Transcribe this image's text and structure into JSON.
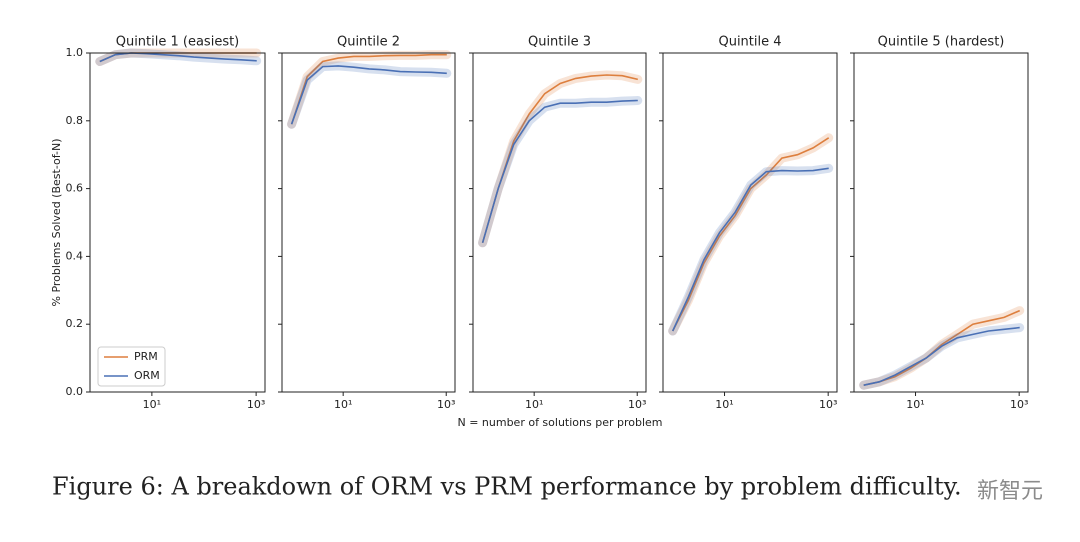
{
  "chart_data": [
    {
      "type": "line",
      "title": "Quintile 1 (easiest)",
      "ylabel": "% Problems Solved (Best-of-N)",
      "log_x": true,
      "x": [
        1,
        2,
        4,
        8,
        16,
        32,
        64,
        128,
        256,
        512,
        1024
      ],
      "xlim": [
        0.65,
        1480
      ],
      "xticks": [
        {
          "value": 10,
          "label": "10¹"
        },
        {
          "value": 1000,
          "label": "10³"
        }
      ],
      "ylim": [
        0,
        1
      ],
      "yticks": [
        {
          "value": 0,
          "label": "0.0"
        },
        0.2,
        0.4,
        0.6,
        0.8,
        {
          "value": 1,
          "label": "1.0"
        }
      ],
      "legend": "lower left",
      "series": [
        {
          "name": "PRM",
          "color": "#dd7f3e",
          "values": [
            0.975,
            0.995,
            1.0,
            1.0,
            1.0,
            1.0,
            1.0,
            1.0,
            1.0,
            1.0,
            1.0
          ]
        },
        {
          "name": "ORM",
          "color": "#4a70b5",
          "values": [
            0.975,
            0.995,
            1.0,
            0.998,
            0.995,
            0.992,
            0.988,
            0.985,
            0.982,
            0.98,
            0.977
          ]
        }
      ]
    },
    {
      "type": "line",
      "title": "Quintile 2",
      "log_x": true,
      "x": [
        1,
        2,
        4,
        8,
        16,
        32,
        64,
        128,
        256,
        512,
        1024
      ],
      "xlim": [
        0.65,
        1480
      ],
      "xticks": [
        {
          "value": 10,
          "label": "10¹"
        },
        {
          "value": 1000,
          "label": "10³"
        }
      ],
      "ylim": [
        0,
        1
      ],
      "yticks": [
        0,
        0.2,
        0.4,
        0.6,
        0.8,
        1
      ],
      "series": [
        {
          "color": "#dd7f3e",
          "values": [
            0.79,
            0.93,
            0.975,
            0.985,
            0.99,
            0.99,
            0.992,
            0.993,
            0.993,
            0.995,
            0.995
          ]
        },
        {
          "color": "#4a70b5",
          "values": [
            0.79,
            0.92,
            0.96,
            0.962,
            0.958,
            0.953,
            0.95,
            0.945,
            0.944,
            0.943,
            0.94
          ]
        }
      ]
    },
    {
      "type": "line",
      "title": "Quintile 3",
      "log_x": true,
      "x": [
        1,
        2,
        4,
        8,
        16,
        32,
        64,
        128,
        256,
        512,
        1024
      ],
      "xlim": [
        0.65,
        1480
      ],
      "xticks": [
        {
          "value": 10,
          "label": "10¹"
        },
        {
          "value": 1000,
          "label": "10³"
        }
      ],
      "ylim": [
        0,
        1
      ],
      "yticks": [
        0,
        0.2,
        0.4,
        0.6,
        0.8,
        1
      ],
      "series": [
        {
          "color": "#dd7f3e",
          "values": [
            0.44,
            0.6,
            0.74,
            0.82,
            0.88,
            0.91,
            0.925,
            0.932,
            0.935,
            0.933,
            0.922
          ]
        },
        {
          "color": "#4a70b5",
          "values": [
            0.44,
            0.6,
            0.73,
            0.8,
            0.84,
            0.852,
            0.852,
            0.855,
            0.855,
            0.858,
            0.86
          ]
        }
      ]
    },
    {
      "type": "line",
      "title": "Quintile 4",
      "log_x": true,
      "x": [
        1,
        2,
        4,
        8,
        16,
        32,
        64,
        128,
        256,
        512,
        1024
      ],
      "xlim": [
        0.65,
        1480
      ],
      "xticks": [
        {
          "value": 10,
          "label": "10¹"
        },
        {
          "value": 1000,
          "label": "10³"
        }
      ],
      "ylim": [
        0,
        1
      ],
      "yticks": [
        0,
        0.2,
        0.4,
        0.6,
        0.8,
        1
      ],
      "series": [
        {
          "color": "#dd7f3e",
          "values": [
            0.18,
            0.27,
            0.38,
            0.46,
            0.52,
            0.6,
            0.64,
            0.69,
            0.7,
            0.72,
            0.75
          ]
        },
        {
          "color": "#4a70b5",
          "values": [
            0.18,
            0.28,
            0.39,
            0.47,
            0.53,
            0.61,
            0.65,
            0.653,
            0.652,
            0.653,
            0.66
          ]
        }
      ]
    },
    {
      "type": "line",
      "title": "Quintile 5 (hardest)",
      "log_x": true,
      "x": [
        1,
        2,
        4,
        8,
        16,
        32,
        64,
        128,
        256,
        512,
        1024
      ],
      "xlim": [
        0.65,
        1480
      ],
      "xticks": [
        {
          "value": 10,
          "label": "10¹"
        },
        {
          "value": 1000,
          "label": "10³"
        }
      ],
      "ylim": [
        0,
        1
      ],
      "yticks": [
        0,
        0.2,
        0.4,
        0.6,
        0.8,
        1
      ],
      "series": [
        {
          "color": "#dd7f3e",
          "values": [
            0.02,
            0.03,
            0.045,
            0.07,
            0.1,
            0.14,
            0.17,
            0.2,
            0.21,
            0.22,
            0.24
          ]
        },
        {
          "color": "#4a70b5",
          "values": [
            0.02,
            0.03,
            0.05,
            0.075,
            0.1,
            0.135,
            0.16,
            0.17,
            0.18,
            0.185,
            0.19
          ]
        }
      ]
    }
  ],
  "xlabel": "N = number of solutions per problem",
  "caption": "Figure 6: A breakdown of ORM vs PRM performance by problem difficulty.",
  "watermark": "新智元"
}
